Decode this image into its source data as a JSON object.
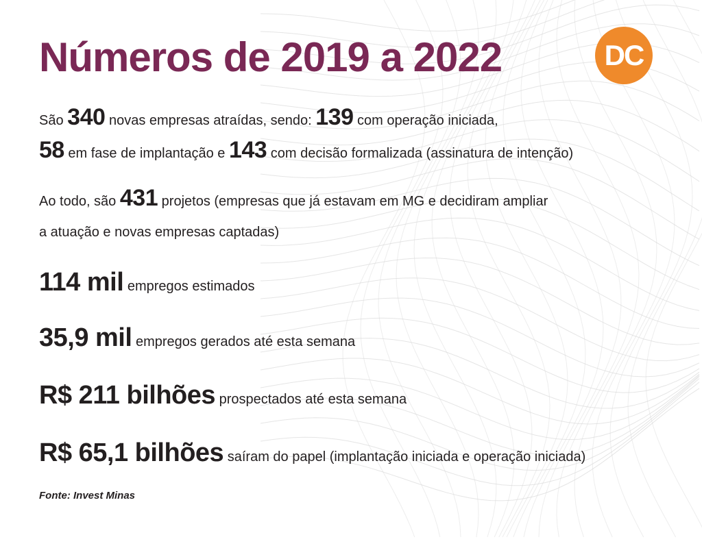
{
  "header": {
    "title": "Números de 2019 a 2022",
    "logo_text": "DC"
  },
  "colors": {
    "title": "#7a2855",
    "logo": "#ef8a2b",
    "text": "#231f20"
  },
  "summary": {
    "line1": {
      "pre": "São",
      "n1": "340",
      "mid": "novas empresas atraídas, sendo:",
      "n2": "139",
      "post": "com operação iniciada,"
    },
    "line2": {
      "n1": "58",
      "mid": "em fase de implantação e",
      "n2": "143",
      "post": "com decisão formalizada (assinatura de intenção)"
    }
  },
  "projects": {
    "pre": "Ao todo, são",
    "number": "431",
    "post": "projetos (empresas que já estavam em MG e decidiram ampliar",
    "line2": "a atuação e novas empresas captadas)"
  },
  "stats": [
    {
      "value": "114 mil",
      "label": "empregos estimados"
    },
    {
      "value": "35,9 mil",
      "label": "empregos gerados até esta semana"
    },
    {
      "value": "R$ 211 bilhões",
      "label": "prospectados até esta semana"
    },
    {
      "value": "R$ 65,1 bilhões",
      "label": "saíram do papel (implantação iniciada e operação iniciada)"
    }
  ],
  "source": "Fonte: Invest Minas"
}
